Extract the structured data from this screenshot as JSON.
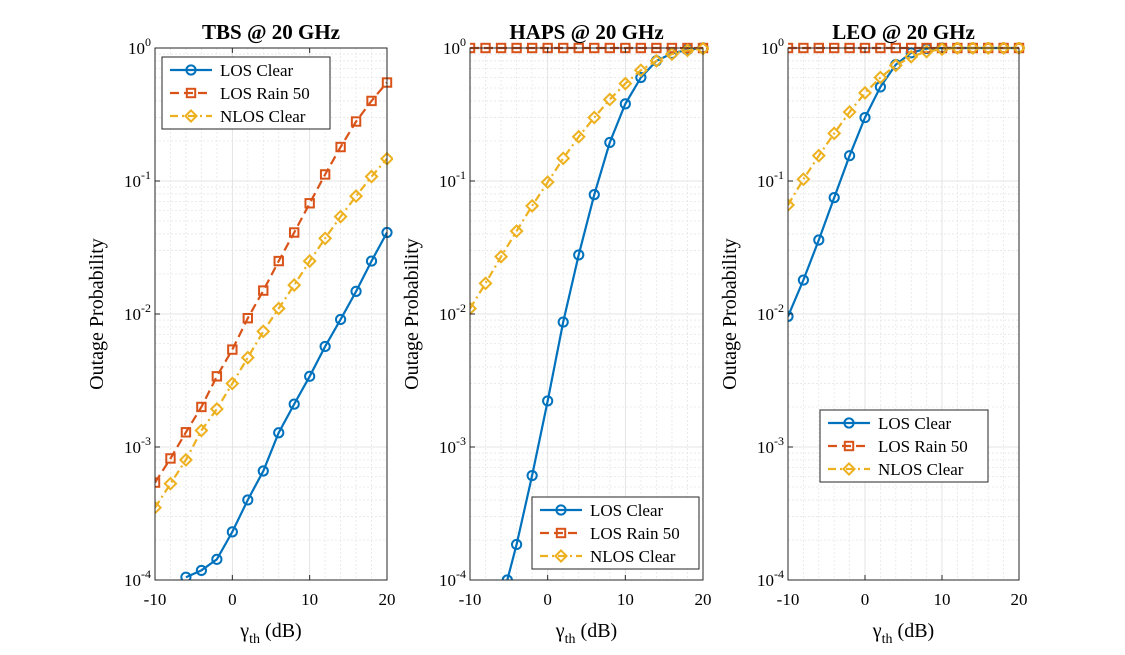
{
  "colors": {
    "los_clear": "#0072BD",
    "los_rain": "#D95319",
    "nlos_clear": "#EDB120",
    "grid": "#dddddd"
  },
  "chart_data": [
    {
      "type": "line",
      "title": "TBS @ 20 GHz",
      "xlabel_main": "γ",
      "xlabel_sub": "th",
      "xlabel_unit": " (dB)",
      "ylabel": "Outage Probability",
      "yscale": "log",
      "xlim": [
        -10,
        20
      ],
      "ylim": [
        0.0001,
        1
      ],
      "xticks": [
        -10,
        0,
        10,
        20
      ],
      "xtick_labels": [
        "-10",
        "0",
        "10",
        "20"
      ],
      "yticks": [
        0.0001,
        0.001,
        0.01,
        0.1,
        1
      ],
      "ytick_mantissa": "10",
      "ytick_exponents": [
        "-4",
        "-3",
        "-2",
        "-1",
        "0"
      ],
      "grid": true,
      "legend_position": "top-left",
      "series": [
        {
          "name": "LOS Clear",
          "style": "solid",
          "marker": "circle",
          "color_key": "los_clear",
          "x": [
            -6,
            -4,
            -2,
            0,
            2,
            4,
            6,
            8,
            10,
            12,
            14,
            16,
            18,
            20
          ],
          "y": [
            0.000105,
            0.000118,
            0.000143,
            0.00023,
            0.0004,
            0.00066,
            0.00128,
            0.0021,
            0.0034,
            0.0057,
            0.0091,
            0.0148,
            0.025,
            0.041
          ]
        },
        {
          "name": "LOS Rain 50",
          "style": "dashed",
          "marker": "square",
          "color_key": "los_rain",
          "x": [
            -10,
            -8,
            -6,
            -4,
            -2,
            0,
            2,
            4,
            6,
            8,
            10,
            12,
            14,
            16,
            18,
            20
          ],
          "y": [
            0.00054,
            0.00082,
            0.00129,
            0.002,
            0.0034,
            0.0054,
            0.0093,
            0.015,
            0.025,
            0.041,
            0.068,
            0.112,
            0.18,
            0.28,
            0.4,
            0.55
          ]
        },
        {
          "name": "NLOS Clear",
          "style": "dashdot",
          "marker": "diamond",
          "color_key": "nlos_clear",
          "x": [
            -10,
            -8,
            -6,
            -4,
            -2,
            0,
            2,
            4,
            6,
            8,
            10,
            12,
            14,
            16,
            18,
            20
          ],
          "y": [
            0.00035,
            0.00053,
            0.0008,
            0.00133,
            0.00193,
            0.003,
            0.0047,
            0.0074,
            0.011,
            0.0165,
            0.025,
            0.037,
            0.054,
            0.077,
            0.108,
            0.147
          ]
        }
      ]
    },
    {
      "type": "line",
      "title": "HAPS @ 20 GHz",
      "xlabel_main": "γ",
      "xlabel_sub": "th",
      "xlabel_unit": " (dB)",
      "ylabel": "Outage Probability",
      "yscale": "log",
      "xlim": [
        -10,
        20
      ],
      "ylim": [
        0.0001,
        1
      ],
      "xticks": [
        -10,
        0,
        10,
        20
      ],
      "xtick_labels": [
        "-10",
        "0",
        "10",
        "20"
      ],
      "yticks": [
        0.0001,
        0.001,
        0.01,
        0.1,
        1
      ],
      "ytick_mantissa": "10",
      "ytick_exponents": [
        "-4",
        "-3",
        "-2",
        "-1",
        "0"
      ],
      "grid": true,
      "legend_position": "bottom-right",
      "series": [
        {
          "name": "LOS Clear",
          "style": "solid",
          "marker": "circle",
          "color_key": "los_clear",
          "x": [
            -5.2,
            -4,
            -2,
            0,
            2,
            4,
            6,
            8,
            10,
            12,
            14,
            16,
            18,
            20
          ],
          "y": [
            0.0001,
            0.000185,
            0.00061,
            0.00222,
            0.0087,
            0.0278,
            0.079,
            0.195,
            0.38,
            0.6,
            0.8,
            0.91,
            0.97,
            1.0
          ]
        },
        {
          "name": "LOS Rain 50",
          "style": "dashed",
          "marker": "square",
          "color_key": "los_rain",
          "x": [
            -10,
            -8,
            -6,
            -4,
            -2,
            0,
            2,
            4,
            6,
            8,
            10,
            12,
            14,
            16,
            18,
            20
          ],
          "y": [
            1,
            1,
            1,
            1,
            1,
            1,
            1,
            1,
            1,
            1,
            1,
            1,
            1,
            1,
            1,
            1
          ]
        },
        {
          "name": "NLOS Clear",
          "style": "dashdot",
          "marker": "diamond",
          "color_key": "nlos_clear",
          "x": [
            -10,
            -8,
            -6,
            -4,
            -2,
            0,
            2,
            4,
            6,
            8,
            10,
            12,
            14,
            16,
            18,
            20
          ],
          "y": [
            0.011,
            0.017,
            0.027,
            0.042,
            0.065,
            0.098,
            0.148,
            0.215,
            0.3,
            0.41,
            0.54,
            0.68,
            0.8,
            0.9,
            0.96,
            0.99
          ]
        }
      ]
    },
    {
      "type": "line",
      "title": "LEO @ 20 GHz",
      "xlabel_main": "γ",
      "xlabel_sub": "th",
      "xlabel_unit": " (dB)",
      "ylabel": "Outage Probability",
      "yscale": "log",
      "xlim": [
        -10,
        20
      ],
      "ylim": [
        0.0001,
        1
      ],
      "xticks": [
        -10,
        0,
        10,
        20
      ],
      "xtick_labels": [
        "-10",
        "0",
        "10",
        "20"
      ],
      "yticks": [
        0.0001,
        0.001,
        0.01,
        0.1,
        1
      ],
      "ytick_mantissa": "10",
      "ytick_exponents": [
        "-4",
        "-3",
        "-2",
        "-1",
        "0"
      ],
      "grid": true,
      "legend_position": "lower-center",
      "series": [
        {
          "name": "LOS Clear",
          "style": "solid",
          "marker": "circle",
          "color_key": "los_clear",
          "x": [
            -10,
            -8,
            -6,
            -4,
            -2,
            0,
            2,
            4,
            6,
            8,
            10,
            12,
            14,
            16,
            18,
            20
          ],
          "y": [
            0.0096,
            0.018,
            0.036,
            0.075,
            0.155,
            0.3,
            0.51,
            0.75,
            0.92,
            0.99,
            1,
            1,
            1,
            1,
            1,
            1
          ]
        },
        {
          "name": "LOS Rain 50",
          "style": "dashed",
          "marker": "square",
          "color_key": "los_rain",
          "x": [
            -10,
            -8,
            -6,
            -4,
            -2,
            0,
            2,
            4,
            6,
            8,
            10,
            12,
            14,
            16,
            18,
            20
          ],
          "y": [
            1,
            1,
            1,
            1,
            1,
            1,
            1,
            1,
            1,
            1,
            1,
            1,
            1,
            1,
            1,
            1
          ]
        },
        {
          "name": "NLOS Clear",
          "style": "dashdot",
          "marker": "diamond",
          "color_key": "nlos_clear",
          "x": [
            -10,
            -8,
            -6,
            -4,
            -2,
            0,
            2,
            4,
            6,
            8,
            10,
            12,
            14,
            16,
            18,
            20
          ],
          "y": [
            0.066,
            0.103,
            0.155,
            0.228,
            0.33,
            0.46,
            0.6,
            0.74,
            0.86,
            0.94,
            0.98,
            1,
            1,
            1,
            1,
            1
          ]
        }
      ]
    }
  ]
}
